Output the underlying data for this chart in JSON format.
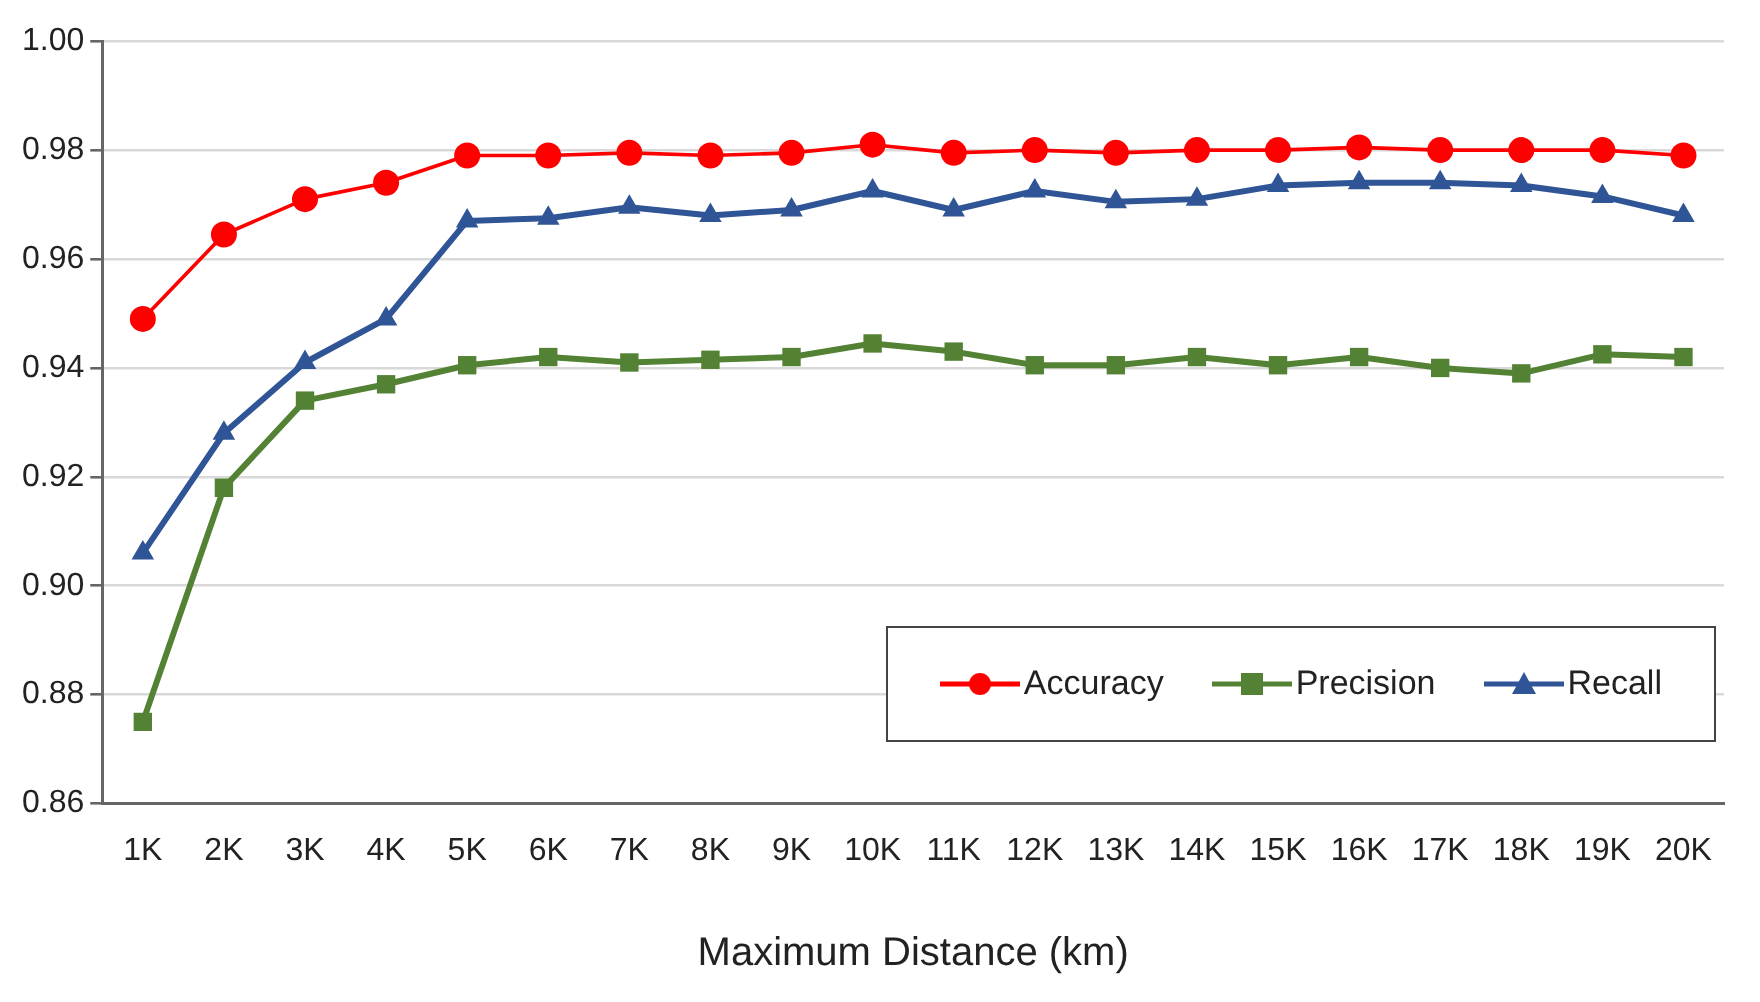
{
  "chart_data": {
    "type": "line",
    "xlabel": "Maximum Distance (km)",
    "categories": [
      "1K",
      "2K",
      "3K",
      "4K",
      "5K",
      "6K",
      "7K",
      "8K",
      "9K",
      "10K",
      "11K",
      "12K",
      "13K",
      "14K",
      "15K",
      "16K",
      "17K",
      "18K",
      "19K",
      "20K"
    ],
    "series": [
      {
        "name": "Accuracy",
        "color": "#ff0000",
        "marker": "circle",
        "values": [
          0.949,
          0.9645,
          0.971,
          0.974,
          0.979,
          0.979,
          0.9795,
          0.979,
          0.9795,
          0.981,
          0.9795,
          0.98,
          0.9795,
          0.98,
          0.98,
          0.9805,
          0.98,
          0.98,
          0.98,
          0.979
        ]
      },
      {
        "name": "Precision",
        "color": "#548235",
        "marker": "square",
        "values": [
          0.875,
          0.918,
          0.934,
          0.937,
          0.9405,
          0.942,
          0.941,
          0.9415,
          0.942,
          0.9445,
          0.943,
          0.9405,
          0.9405,
          0.942,
          0.9405,
          0.942,
          0.94,
          0.939,
          0.9425,
          0.942
        ]
      },
      {
        "name": "Recall",
        "color": "#2f5597",
        "marker": "triangle",
        "values": [
          0.906,
          0.928,
          0.941,
          0.949,
          0.967,
          0.9675,
          0.9695,
          0.968,
          0.969,
          0.9725,
          0.969,
          0.9725,
          0.9705,
          0.971,
          0.9735,
          0.974,
          0.974,
          0.9735,
          0.9715,
          0.968
        ]
      }
    ],
    "ylim": [
      0.86,
      1.0
    ],
    "yticks": [
      {
        "value": 0.86,
        "label": "0.86"
      },
      {
        "value": 0.88,
        "label": "0.88"
      },
      {
        "value": 0.9,
        "label": "0.90"
      },
      {
        "value": 0.92,
        "label": "0.92"
      },
      {
        "value": 0.94,
        "label": "0.94"
      },
      {
        "value": 0.96,
        "label": "0.96"
      },
      {
        "value": 0.98,
        "label": "0.98"
      },
      {
        "value": 1.0,
        "label": "1.00"
      }
    ],
    "grid": "y",
    "legend": "bottom right",
    "line_style": "solid"
  }
}
